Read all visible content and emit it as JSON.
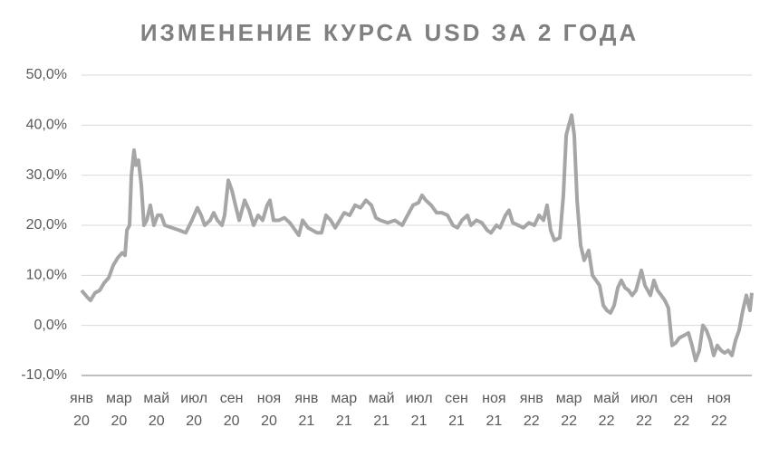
{
  "chart_data": {
    "type": "line",
    "title": "ИЗМЕНЕНИЕ КУРСА USD ЗА 2 ГОДА",
    "x": [
      0,
      0.34,
      0.48,
      0.72,
      0.97,
      1.21,
      1.45,
      1.69,
      1.93,
      2.17,
      2.32,
      2.42,
      2.56,
      2.66,
      2.8,
      2.9,
      3.04,
      3.19,
      3.33,
      3.48,
      3.67,
      3.86,
      4.06,
      4.25,
      4.44,
      4.83,
      5.22,
      5.56,
      5.89,
      6.18,
      6.38,
      6.57,
      6.86,
      7.05,
      7.25,
      7.49,
      7.63,
      7.83,
      8.02,
      8.21,
      8.41,
      8.7,
      8.94,
      9.18,
      9.42,
      9.66,
      9.9,
      10.05,
      10.24,
      10.53,
      10.82,
      11.11,
      11.4,
      11.59,
      11.79,
      12.08,
      12.32,
      12.56,
      12.8,
      13.04,
      13.29,
      13.53,
      13.77,
      14.01,
      14.3,
      14.59,
      14.88,
      15.17,
      15.46,
      15.7,
      15.94,
      16.33,
      16.71,
      17.1,
      17.39,
      17.68,
      17.97,
      18.16,
      18.36,
      18.65,
      18.94,
      19.23,
      19.52,
      19.81,
      20.05,
      20.29,
      20.58,
      20.77,
      21.06,
      21.35,
      21.64,
      21.84,
      22.13,
      22.32,
      22.61,
      22.8,
      23.0,
      23.29,
      23.57,
      23.86,
      24.15,
      24.4,
      24.64,
      24.83,
      25.02,
      25.22,
      25.51,
      25.7,
      25.85,
      25.99,
      26.14,
      26.28,
      26.43,
      26.62,
      26.81,
      27.05,
      27.25,
      27.44,
      27.63,
      27.83,
      28.02,
      28.21,
      28.41,
      28.6,
      28.79,
      28.99,
      29.18,
      29.37,
      29.57,
      29.86,
      30.05,
      30.34,
      30.53,
      30.72,
      30.92,
      31.11,
      31.3,
      31.5,
      31.69,
      31.88,
      32.13,
      32.37,
      32.56,
      32.75,
      32.95,
      33.14,
      33.33,
      33.53,
      33.72,
      33.91,
      34.11,
      34.3,
      34.49,
      34.69,
      34.88,
      35.07,
      35.27,
      35.46,
      35.65,
      35.75
    ],
    "series": [
      {
        "color": "#a6a6a6",
        "values": [
          7,
          5.5,
          5,
          6.5,
          7,
          8.5,
          9.5,
          12,
          13.5,
          14.5,
          14,
          19,
          20,
          30,
          35,
          32,
          33,
          28,
          20,
          21,
          24,
          20,
          22,
          22,
          20,
          19.5,
          19,
          18.5,
          21,
          23.5,
          22,
          20,
          21,
          22.5,
          21,
          20,
          22,
          29,
          27,
          24,
          21,
          25,
          23,
          20,
          22,
          21,
          24,
          25,
          21,
          21,
          21.5,
          20.5,
          19,
          18,
          21,
          19.5,
          19,
          18.5,
          18.5,
          22,
          21,
          19.5,
          21,
          22.5,
          22,
          24,
          23.5,
          25,
          24,
          21.5,
          21,
          20.5,
          21,
          20,
          22,
          24,
          24.5,
          26,
          25,
          24,
          22.5,
          22.5,
          22,
          20,
          19.5,
          21,
          22,
          20,
          21,
          20.5,
          19,
          18.5,
          20,
          19.5,
          22,
          23,
          20.5,
          20,
          19.5,
          20.5,
          20,
          22,
          21,
          24,
          19,
          17,
          17.5,
          26,
          38,
          40,
          42,
          38,
          25,
          16,
          13,
          15,
          10,
          9,
          8,
          4,
          3,
          2.5,
          4,
          7.5,
          9,
          7.5,
          7,
          6,
          7,
          11,
          8,
          6,
          9,
          7,
          6,
          5,
          3.5,
          -4,
          -3.5,
          -2.5,
          -2,
          -1.5,
          -4,
          -7,
          -5,
          0,
          -1,
          -3,
          -6,
          -4,
          -5,
          -5.5,
          -5,
          -6,
          -3,
          -1,
          3,
          6,
          3,
          6.5
        ]
      }
    ],
    "xlim": [
      0,
      35.75
    ],
    "xticks": [
      {
        "value": 0,
        "label": "янв 20"
      },
      {
        "value": 2,
        "label": "мар 20"
      },
      {
        "value": 4,
        "label": "май 20"
      },
      {
        "value": 6,
        "label": "июл 20"
      },
      {
        "value": 8,
        "label": "сен 20"
      },
      {
        "value": 10,
        "label": "ноя 20"
      },
      {
        "value": 12,
        "label": "янв 21"
      },
      {
        "value": 14,
        "label": "мар 21"
      },
      {
        "value": 16,
        "label": "май 21"
      },
      {
        "value": 18,
        "label": "июл 21"
      },
      {
        "value": 20,
        "label": "сен 21"
      },
      {
        "value": 22,
        "label": "ноя 21"
      },
      {
        "value": 24,
        "label": "янв 22"
      },
      {
        "value": 26,
        "label": "мар 22"
      },
      {
        "value": 28,
        "label": "май 22"
      },
      {
        "value": 30,
        "label": "июл 22"
      },
      {
        "value": 32,
        "label": "сен 22"
      },
      {
        "value": 34,
        "label": "ноя 22"
      }
    ],
    "ylim": [
      -10,
      50
    ],
    "yticks": [
      {
        "value": -10,
        "label": "-10,0%"
      },
      {
        "value": 0,
        "label": "0,0%"
      },
      {
        "value": 10,
        "label": "10,0%"
      },
      {
        "value": 20,
        "label": "20,0%"
      },
      {
        "value": 30,
        "label": "30,0%"
      },
      {
        "value": 40,
        "label": "40,0%"
      },
      {
        "value": 50,
        "label": "50,0%"
      }
    ],
    "grid": true
  }
}
